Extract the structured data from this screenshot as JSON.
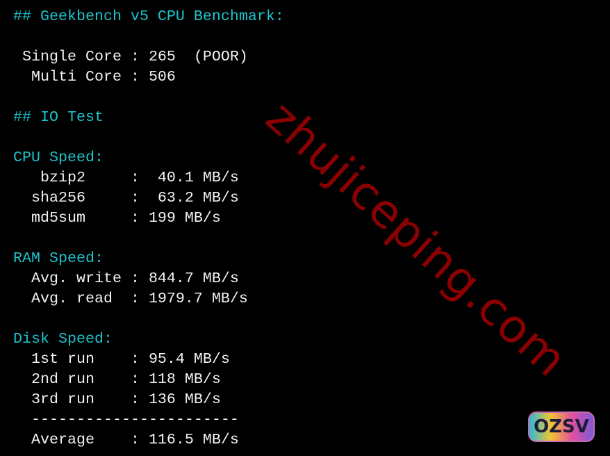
{
  "colors": {
    "heading": "#1bc4cc",
    "text": "#f2f2f2",
    "background": "#000000",
    "watermark": "#8b0000"
  },
  "geekbench": {
    "heading": "## Geekbench v5 CPU Benchmark:",
    "single": " Single Core : 265  (POOR)",
    "multi": "  Multi Core : 506"
  },
  "io": {
    "heading": "## IO Test"
  },
  "cpu": {
    "heading": "CPU Speed:",
    "bzip2": "   bzip2     :  40.1 MB/s",
    "sha256": "  sha256     :  63.2 MB/s",
    "md5sum": "  md5sum     : 199 MB/s"
  },
  "ram": {
    "heading": "RAM Speed:",
    "write": "  Avg. write : 844.7 MB/s",
    "read": "  Avg. read  : 1979.7 MB/s"
  },
  "disk": {
    "heading": "Disk Speed:",
    "run1": "  1st run    : 95.4 MB/s",
    "run2": "  2nd run    : 118 MB/s",
    "run3": "  3rd run    : 136 MB/s",
    "divider": "  -----------------------",
    "average": "  Average    : 116.5 MB/s"
  },
  "watermark": "zhujiceping.com",
  "logo": "OZSV"
}
